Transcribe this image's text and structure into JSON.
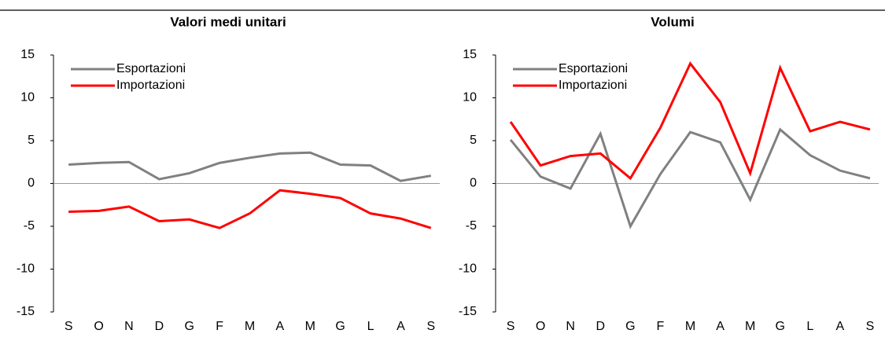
{
  "chart_data": [
    {
      "type": "line",
      "title": "Valori medi unitari",
      "categories": [
        "S",
        "O",
        "N",
        "D",
        "G",
        "F",
        "M",
        "A",
        "M",
        "G",
        "L",
        "A",
        "S"
      ],
      "series": [
        {
          "name": "Esportazioni",
          "color": "#808080",
          "values": [
            2.2,
            2.4,
            2.5,
            0.5,
            1.2,
            2.4,
            3.0,
            3.5,
            3.6,
            2.2,
            2.1,
            0.3,
            0.9
          ]
        },
        {
          "name": "Importazioni",
          "color": "#ff0000",
          "values": [
            -3.3,
            -3.2,
            -2.7,
            -4.4,
            -4.2,
            -5.2,
            -3.5,
            -0.8,
            -1.2,
            -1.7,
            -3.5,
            -4.1,
            -5.2
          ]
        }
      ],
      "ylim": [
        -15,
        15
      ],
      "yticks": [
        -15,
        -10,
        -5,
        0,
        5,
        10,
        15
      ],
      "legend": "upper left"
    },
    {
      "type": "line",
      "title": "Volumi",
      "categories": [
        "S",
        "O",
        "N",
        "D",
        "G",
        "F",
        "M",
        "A",
        "M",
        "G",
        "L",
        "A",
        "S"
      ],
      "series": [
        {
          "name": "Esportazioni",
          "color": "#808080",
          "values": [
            5.1,
            0.8,
            -0.6,
            5.8,
            -5.0,
            1.1,
            6.0,
            4.8,
            -1.9,
            6.3,
            3.3,
            1.5,
            0.6
          ]
        },
        {
          "name": "Importazioni",
          "color": "#ff0000",
          "values": [
            7.2,
            2.1,
            3.2,
            3.5,
            0.6,
            6.5,
            14.0,
            9.5,
            1.2,
            13.5,
            6.1,
            7.2,
            6.3
          ]
        }
      ],
      "ylim": [
        -15,
        15
      ],
      "yticks": [
        -15,
        -10,
        -5,
        0,
        5,
        10,
        15
      ],
      "legend": "upper left"
    }
  ]
}
